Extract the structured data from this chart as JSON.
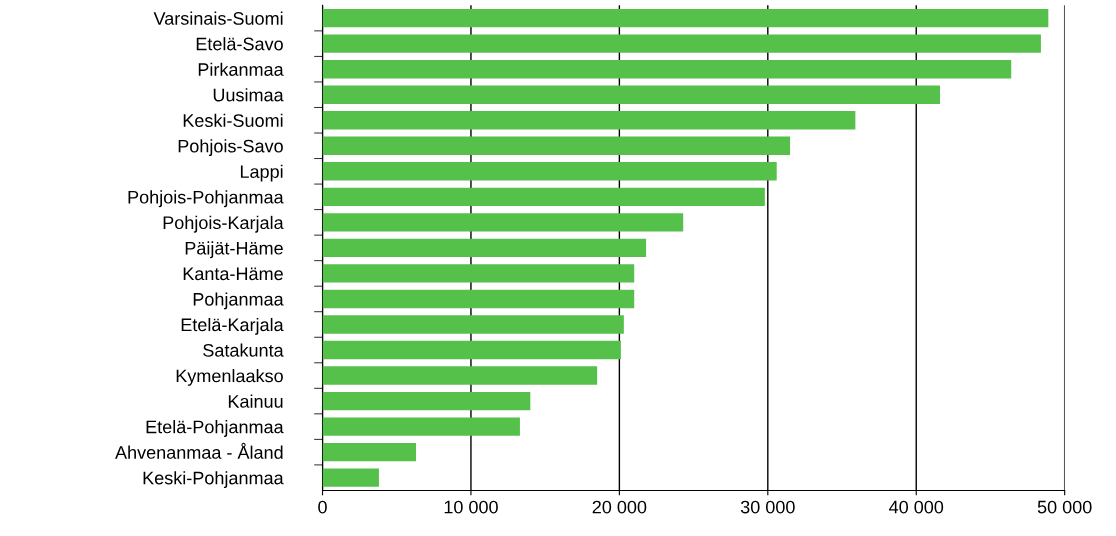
{
  "chart_data": {
    "type": "bar",
    "orientation": "horizontal",
    "categories": [
      "Varsinais-Suomi",
      "Etelä-Savo",
      "Pirkanmaa",
      "Uusimaa",
      "Keski-Suomi",
      "Pohjois-Savo",
      "Lappi",
      "Pohjois-Pohjanmaa",
      "Pohjois-Karjala",
      "Päijät-Häme",
      "Kanta-Häme",
      "Pohjanmaa",
      "Etelä-Karjala",
      "Satakunta",
      "Kymenlaakso",
      "Kainuu",
      "Etelä-Pohjanmaa",
      "Ahvenanmaa - Åland",
      "Keski-Pohjanmaa"
    ],
    "values": [
      48900,
      48400,
      46400,
      41600,
      35900,
      31500,
      30600,
      29800,
      24300,
      21800,
      21000,
      21000,
      20300,
      20100,
      18500,
      14000,
      13300,
      6300,
      3800
    ],
    "color": "#55c04a",
    "xlim": [
      0,
      50000
    ],
    "xticks": [
      {
        "value": 0,
        "label": "0"
      },
      {
        "value": 10000,
        "label": "10 000"
      },
      {
        "value": 20000,
        "label": "20 000"
      },
      {
        "value": 30000,
        "label": "30 000"
      },
      {
        "value": 40000,
        "label": "40 000"
      },
      {
        "value": 50000,
        "label": "50 000"
      }
    ],
    "grid": "x"
  }
}
